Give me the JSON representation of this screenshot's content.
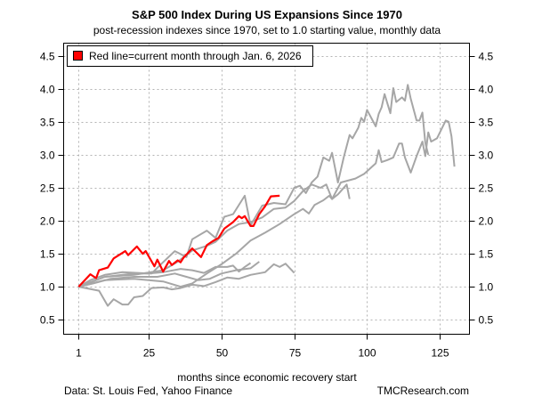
{
  "chart_data": {
    "type": "line",
    "title": "S&P 500 Index During US Expansions Since 1970",
    "subtitle": "post-recession indexes since 1970, set to 1.0 starting value, monthly data",
    "xlabel": "months since economic recovery start",
    "ylabel": "",
    "xlim": [
      1,
      130
    ],
    "ylim": [
      0.5,
      4.5
    ],
    "x_ticks": [
      1,
      25,
      50,
      75,
      100,
      125
    ],
    "x_tick_labels": [
      "1",
      "25",
      "50",
      "75",
      "100",
      "125"
    ],
    "y_ticks": [
      0.5,
      1.0,
      1.5,
      2.0,
      2.5,
      3.0,
      3.5,
      4.0,
      4.5
    ],
    "y_tick_labels": [
      "0.5",
      "1.0",
      "1.5",
      "2.0",
      "2.5",
      "3.0",
      "3.5",
      "4.0",
      "4.5"
    ],
    "grid": true,
    "legend": {
      "position": "top-left",
      "entries": [
        {
          "label": "Red line=current month through Jan. 6, 2026",
          "color": "#ff0000"
        }
      ]
    },
    "source_note": "Data: St. Louis Fed, Yahoo Finance",
    "credit": "TMCResearch.com",
    "series": [
      {
        "name": "past-expansion-a",
        "color": "#a6a6a6",
        "x": [
          1,
          10,
          20,
          26,
          29,
          34,
          38,
          40,
          45,
          48,
          51,
          54,
          58,
          60,
          64,
          68,
          72,
          75,
          77,
          79,
          81,
          83,
          85,
          87,
          88,
          90,
          92,
          94,
          95,
          97,
          98,
          99,
          100,
          103,
          104,
          105,
          106,
          108,
          109,
          110,
          112,
          113,
          114,
          115,
          117,
          118,
          119,
          120,
          121
        ],
        "y": [
          1,
          1.15,
          1.2,
          1.2,
          1.33,
          1.54,
          1.45,
          1.72,
          1.85,
          1.74,
          2.06,
          2.1,
          2.38,
          1.93,
          2.23,
          2.27,
          2.25,
          2.5,
          2.53,
          2.42,
          2.58,
          2.67,
          2.96,
          2.91,
          3.03,
          2.58,
          2.96,
          3.3,
          3.25,
          3.41,
          3.56,
          3.5,
          3.68,
          3.43,
          3.62,
          3.72,
          3.92,
          3.63,
          4.01,
          3.8,
          3.87,
          3.82,
          4.06,
          3.85,
          3.52,
          3.52,
          3.64,
          3.18,
          3.0
        ]
      },
      {
        "name": "past-expansion-b",
        "color": "#a6a6a6",
        "x": [
          1,
          10,
          20,
          30,
          36,
          40,
          45,
          50,
          55,
          60,
          65,
          70,
          75,
          78,
          80,
          82,
          85,
          87,
          88,
          91,
          96,
          99,
          103,
          104,
          105,
          107,
          109,
          111,
          112,
          113,
          115,
          117,
          119,
          120,
          121,
          122,
          124,
          127,
          128,
          129,
          130
        ],
        "y": [
          1,
          1.1,
          1.12,
          1.08,
          1.0,
          1.05,
          1.2,
          1.34,
          1.5,
          1.7,
          1.82,
          1.95,
          2.1,
          2.18,
          2.11,
          2.24,
          2.31,
          2.38,
          2.33,
          2.58,
          2.64,
          2.71,
          2.87,
          3.07,
          2.89,
          2.92,
          2.96,
          3.17,
          3.17,
          2.96,
          2.73,
          2.98,
          3.2,
          2.98,
          3.34,
          3.2,
          3.25,
          3.52,
          3.5,
          3.28,
          2.82
        ]
      },
      {
        "name": "past-expansion-c",
        "color": "#a6a6a6",
        "x": [
          1,
          10,
          20,
          30,
          35,
          40,
          45,
          48,
          52,
          56,
          60,
          64,
          68,
          72,
          75,
          78,
          81,
          84,
          86,
          88,
          90,
          93,
          94
        ],
        "y": [
          1,
          1.15,
          1.18,
          1.25,
          1.38,
          1.55,
          1.62,
          1.68,
          1.85,
          1.95,
          1.98,
          2.05,
          2.18,
          2.2,
          2.3,
          2.45,
          2.55,
          2.5,
          2.55,
          2.33,
          2.4,
          2.55,
          2.33
        ]
      },
      {
        "name": "past-expansion-d",
        "color": "#a6a6a6",
        "x": [
          1,
          8,
          11,
          13,
          16,
          18,
          20,
          23,
          26,
          30,
          33,
          36,
          40,
          44,
          48,
          52,
          56,
          60,
          65,
          68,
          70,
          72,
          75
        ],
        "y": [
          1,
          0.94,
          0.71,
          0.81,
          0.73,
          0.73,
          0.84,
          0.86,
          0.98,
          0.99,
          0.96,
          0.98,
          1.03,
          1.01,
          1.07,
          1.14,
          1.12,
          1.18,
          1.22,
          1.34,
          1.3,
          1.35,
          1.21
        ]
      },
      {
        "name": "past-expansion-e",
        "color": "#a6a6a6",
        "x": [
          1,
          5,
          10,
          16,
          25,
          30,
          36,
          40,
          44,
          48,
          52,
          54,
          56,
          58,
          60
        ],
        "y": [
          1,
          1.1,
          1.18,
          1.22,
          1.2,
          1.22,
          1.27,
          1.25,
          1.21,
          1.3,
          1.3,
          1.32,
          1.23,
          1.3,
          1.36
        ]
      },
      {
        "name": "past-expansion-f",
        "color": "#a6a6a6",
        "x": [
          1,
          6,
          12,
          20,
          28,
          34,
          38,
          42,
          46,
          50,
          55,
          60,
          63
        ],
        "y": [
          1,
          1.05,
          1.12,
          1.15,
          1.15,
          1.2,
          1.15,
          1.1,
          1.12,
          1.2,
          1.25,
          1.28,
          1.38
        ]
      },
      {
        "name": "current-expansion",
        "color": "#ff0000",
        "x": [
          1,
          5,
          7,
          8,
          11,
          13,
          17,
          18,
          21,
          23,
          24,
          27,
          28,
          30,
          32,
          33,
          35,
          36,
          37,
          40,
          43,
          45,
          47,
          49,
          51,
          54,
          56,
          57,
          58,
          60,
          61,
          63,
          65,
          67,
          70
        ],
        "y": [
          1,
          1.19,
          1.13,
          1.25,
          1.29,
          1.43,
          1.54,
          1.48,
          1.61,
          1.5,
          1.54,
          1.31,
          1.41,
          1.23,
          1.39,
          1.33,
          1.4,
          1.37,
          1.44,
          1.58,
          1.45,
          1.63,
          1.69,
          1.74,
          1.88,
          1.98,
          2.07,
          2.04,
          2.07,
          1.92,
          1.92,
          2.1,
          2.22,
          2.37,
          2.38
        ]
      }
    ]
  }
}
